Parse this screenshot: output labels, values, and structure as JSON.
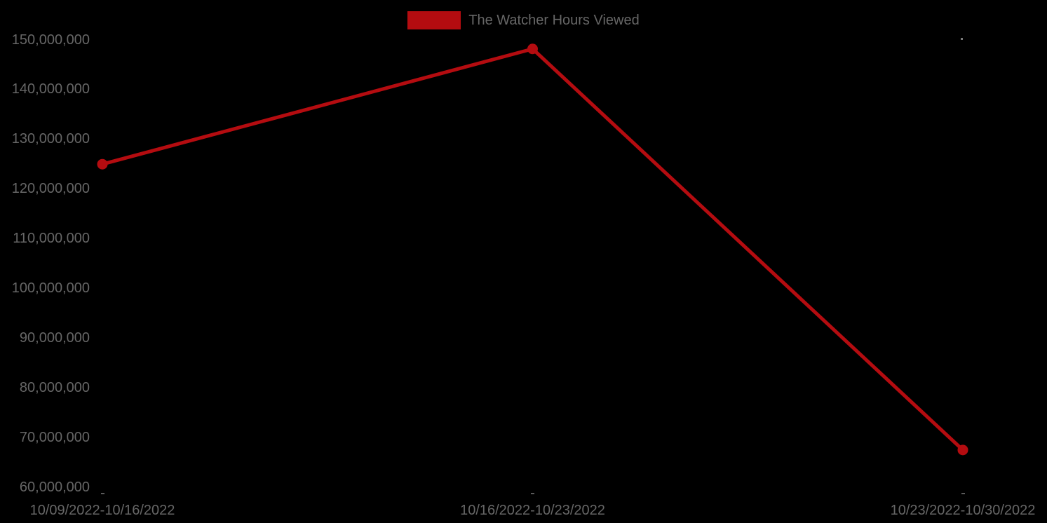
{
  "page": {
    "background_color": "#000000",
    "text_color": "#666666"
  },
  "chart_data": {
    "type": "line",
    "title": "",
    "xlabel": "",
    "ylabel": "",
    "grid": false,
    "legend": {
      "label": "The Watcher Hours Viewed",
      "position": "top-center",
      "swatch_color": "#b40c10"
    },
    "categories": [
      "10/09/2022-10/16/2022",
      "10/16/2022-10/23/2022",
      "10/23/2022-10/30/2022"
    ],
    "series": [
      {
        "name": "The Watcher Hours Viewed",
        "color": "#b40c10",
        "marker": "circle",
        "values": [
          125000000,
          148200000,
          67500000
        ]
      }
    ],
    "ylim": [
      60000000,
      150000000
    ],
    "ytick_step": 10000000,
    "yticks": [
      60000000,
      70000000,
      80000000,
      90000000,
      100000000,
      110000000,
      120000000,
      130000000,
      140000000,
      150000000
    ],
    "ytick_labels": [
      "60,000,000",
      "70,000,000",
      "80,000,000",
      "90,000,000",
      "100,000,000",
      "110,000,000",
      "120,000,000",
      "130,000,000",
      "140,000,000",
      "150,000,000"
    ]
  }
}
